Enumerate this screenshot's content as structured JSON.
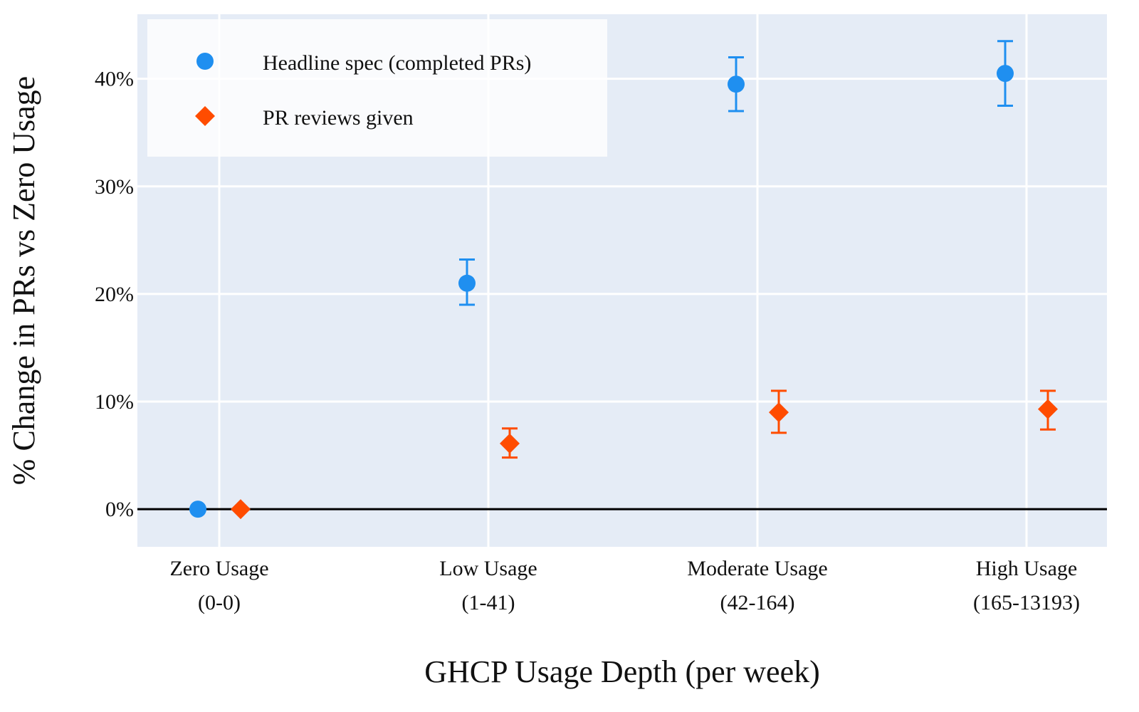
{
  "chart_data": {
    "type": "scatter",
    "title": "",
    "xlabel": "GHCP Usage Depth (per week)",
    "ylabel": "% Change in PRs vs Zero Usage",
    "categories": [
      {
        "label": "Zero Usage",
        "range": "(0-0)"
      },
      {
        "label": "Low Usage",
        "range": "(1-41)"
      },
      {
        "label": "Moderate Usage",
        "range": "(42-164)"
      },
      {
        "label": "High Usage",
        "range": "(165-13193)"
      }
    ],
    "yticks": [
      "0%",
      "10%",
      "20%",
      "30%",
      "40%"
    ],
    "ytick_values": [
      0,
      10,
      20,
      30,
      40
    ],
    "ylim": [
      -3.5,
      46
    ],
    "grid": true,
    "reference_line": 0,
    "legend_position": "top-left",
    "series": [
      {
        "name": "Headline spec (completed PRs)",
        "marker": "circle",
        "color": "#1f8ff0",
        "values": [
          0,
          21.0,
          39.5,
          40.5
        ],
        "err_low": [
          null,
          19.0,
          37.0,
          37.5
        ],
        "err_high": [
          null,
          23.2,
          42.0,
          43.5
        ]
      },
      {
        "name": "PR reviews given",
        "marker": "diamond",
        "color": "#ff4c00",
        "values": [
          0,
          6.1,
          9.0,
          9.3
        ],
        "err_low": [
          null,
          4.8,
          7.1,
          7.4
        ],
        "err_high": [
          null,
          7.5,
          11.0,
          11.0
        ]
      }
    ]
  }
}
